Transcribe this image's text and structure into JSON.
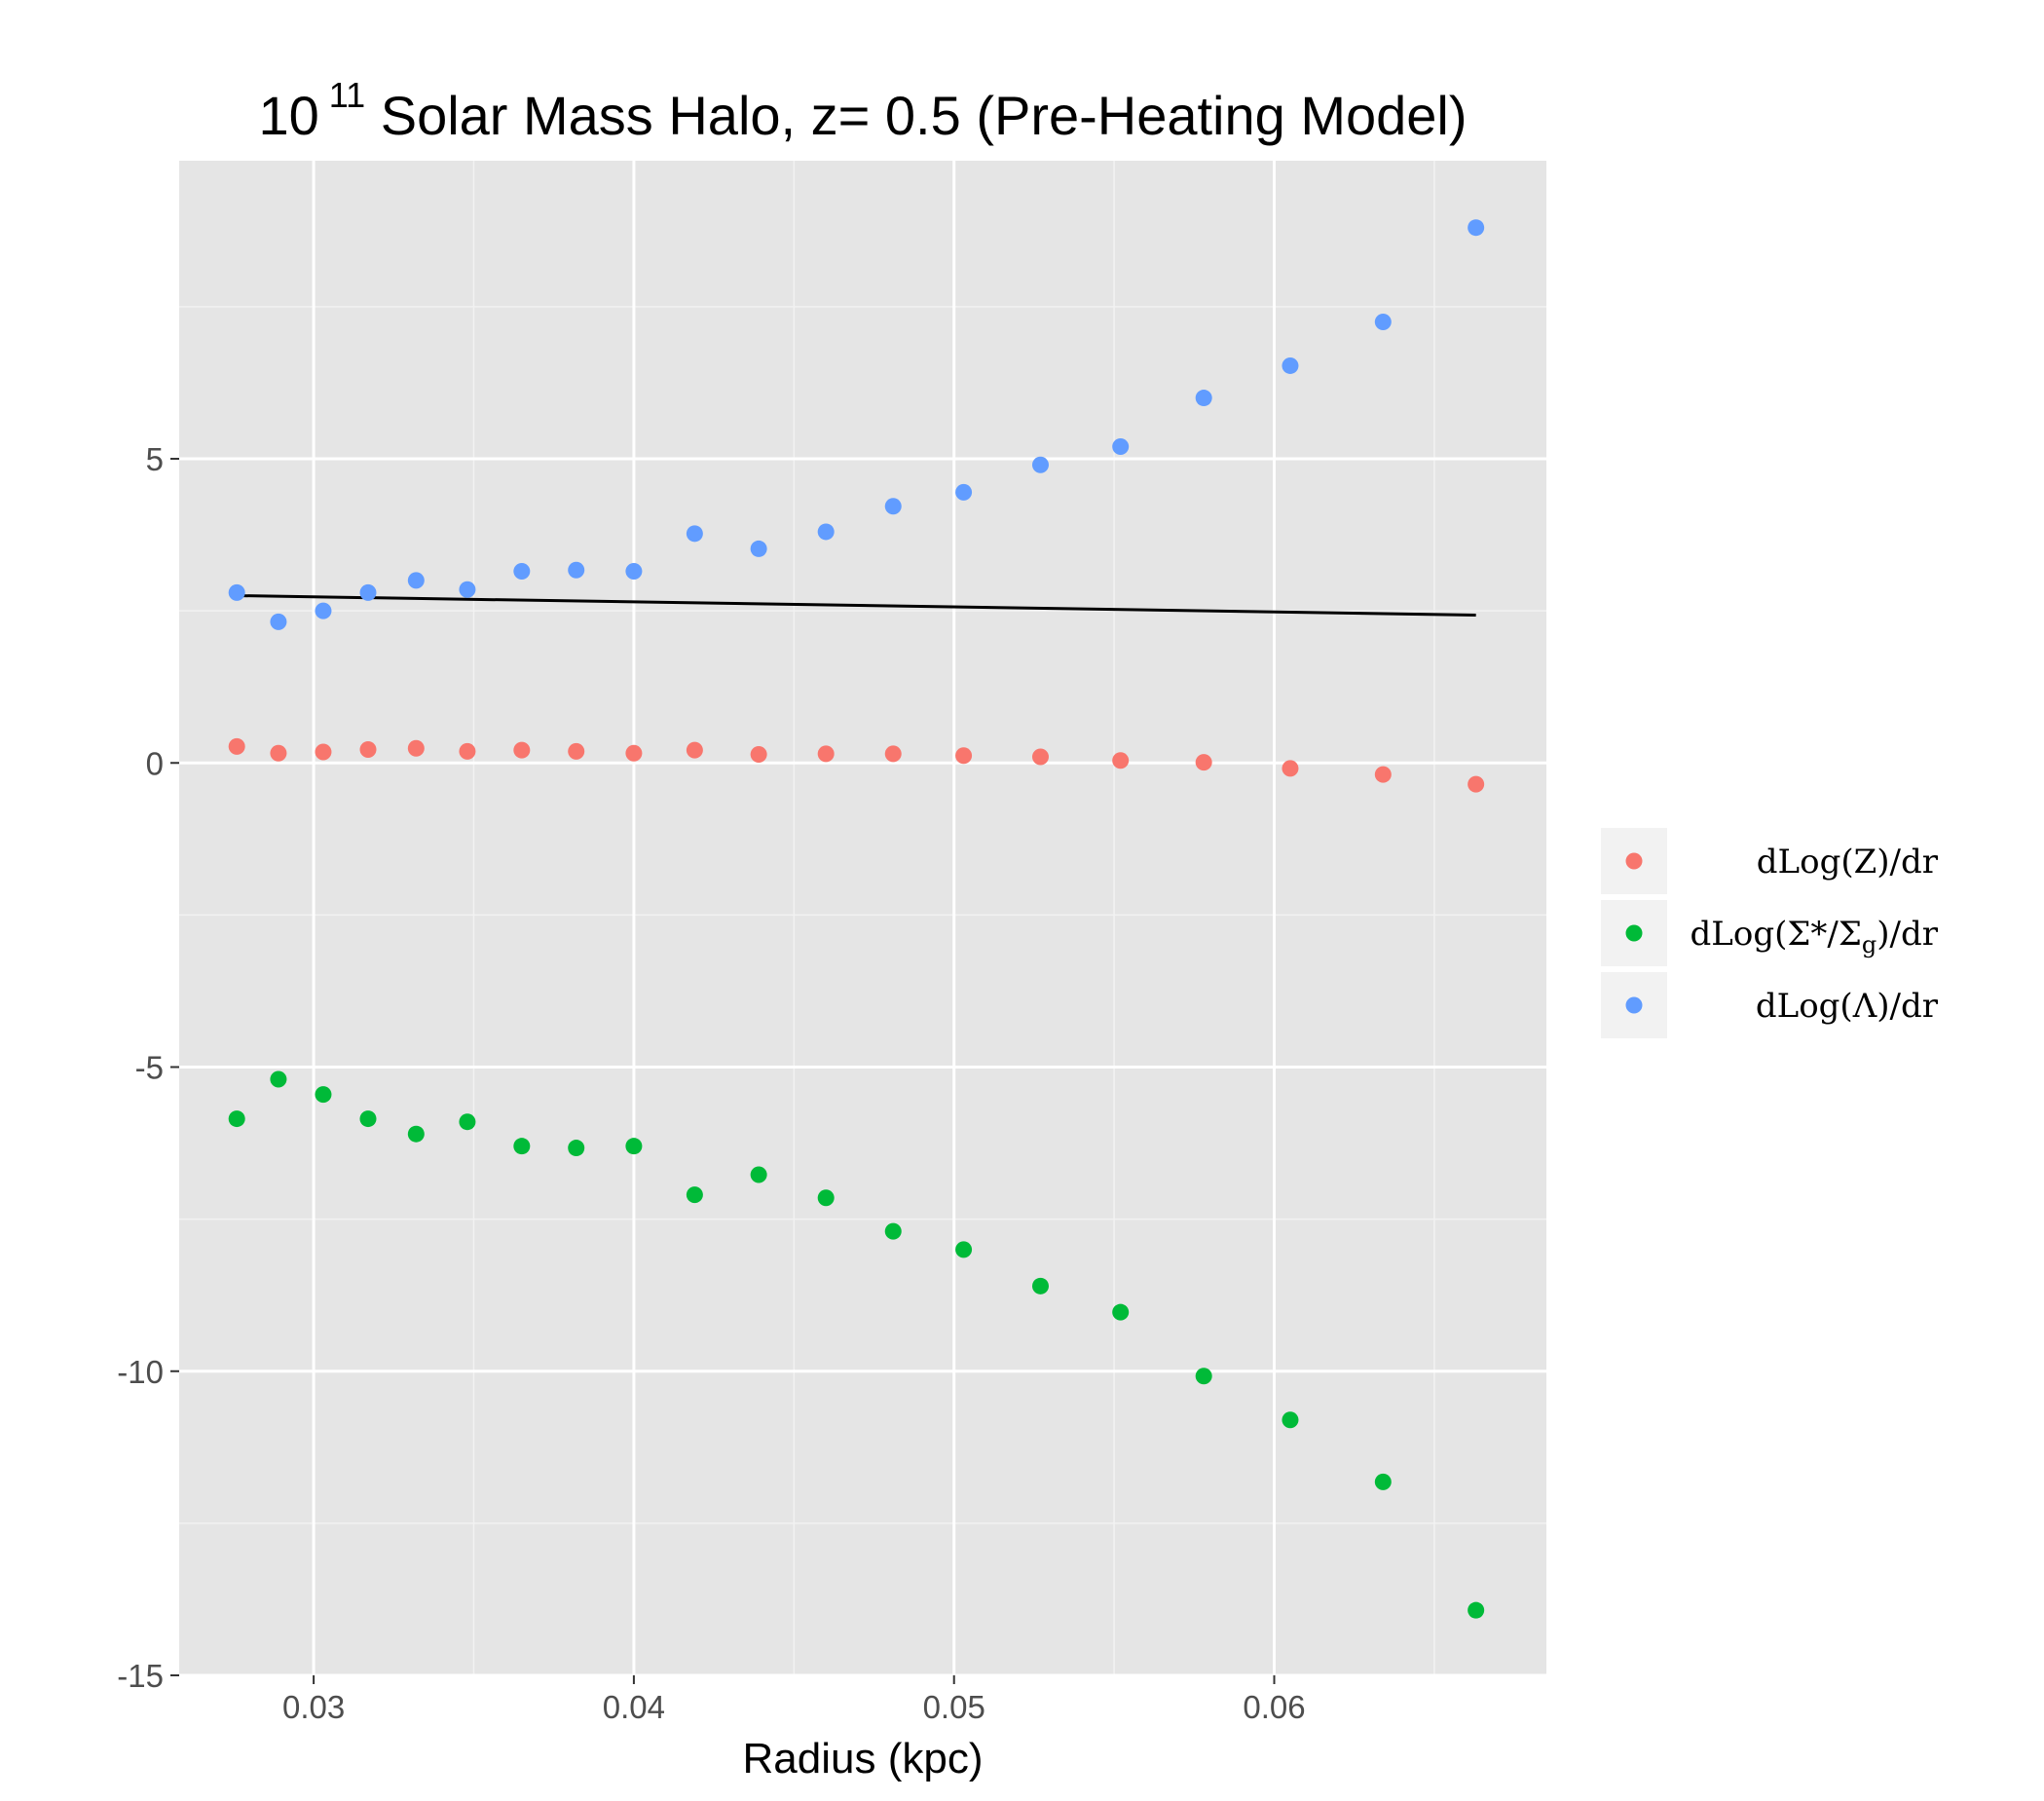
{
  "chart_data": {
    "type": "scatter",
    "title": {
      "base": "10",
      "exponent": "11",
      "rest": " Solar Mass Halo, z= 0.5 (Pre-Heating Model)"
    },
    "xlabel": "Radius (kpc)",
    "ylabel": "",
    "xlim": [
      0.0258,
      0.0685
    ],
    "ylim": [
      -15.0,
      9.9
    ],
    "x_ticks": [
      0.03,
      0.04,
      0.05,
      0.06
    ],
    "x_tick_labels": [
      "0.03",
      "0.04",
      "0.05",
      "0.06"
    ],
    "y_ticks": [
      5,
      0,
      -5,
      -10,
      -15
    ],
    "y_tick_labels": [
      "5",
      "0",
      "-5",
      "-10",
      "-15"
    ],
    "grid": true,
    "legend_position": "right",
    "x": [
      0.0276,
      0.0289,
      0.0303,
      0.0317,
      0.0332,
      0.0348,
      0.0365,
      0.0382,
      0.04,
      0.0419,
      0.0439,
      0.046,
      0.0481,
      0.0503,
      0.0527,
      0.0552,
      0.0578,
      0.0605,
      0.0634,
      0.0663
    ],
    "series": [
      {
        "name": "dLog(Z)/dr",
        "legend": {
          "pre": "dLog(",
          "main": "Z",
          "sub": "",
          "post": ")/dr"
        },
        "color": "#f8766d",
        "values": [
          0.27,
          0.16,
          0.18,
          0.22,
          0.24,
          0.19,
          0.21,
          0.19,
          0.16,
          0.21,
          0.14,
          0.15,
          0.15,
          0.12,
          0.1,
          0.04,
          0.01,
          -0.09,
          -0.19,
          -0.35
        ]
      },
      {
        "name": "dLog(Σ*/Σg)/dr",
        "legend": {
          "pre": "dLog(",
          "main": "Σ*/Σ",
          "sub": "g",
          "post": ")/dr"
        },
        "color": "#00ba38",
        "values": [
          -5.85,
          -5.2,
          -5.45,
          -5.85,
          -6.1,
          -5.9,
          -6.3,
          -6.33,
          -6.3,
          -7.1,
          -6.77,
          -7.15,
          -7.7,
          -8.0,
          -8.6,
          -9.03,
          -10.08,
          -10.8,
          -11.82,
          -13.93
        ]
      },
      {
        "name": "dLog(Λ)/dr",
        "legend": {
          "pre": "dLog(",
          "main": "Λ",
          "sub": "",
          "post": ")/dr"
        },
        "color": "#619cff",
        "values": [
          2.8,
          2.32,
          2.5,
          2.8,
          3.0,
          2.85,
          3.15,
          3.17,
          3.15,
          3.77,
          3.52,
          3.8,
          4.22,
          4.45,
          4.9,
          5.2,
          6.0,
          6.53,
          7.25,
          8.8
        ]
      }
    ],
    "fit_line": {
      "color": "#000000",
      "x": [
        0.0276,
        0.0663
      ],
      "y": [
        2.75,
        2.43
      ]
    }
  }
}
